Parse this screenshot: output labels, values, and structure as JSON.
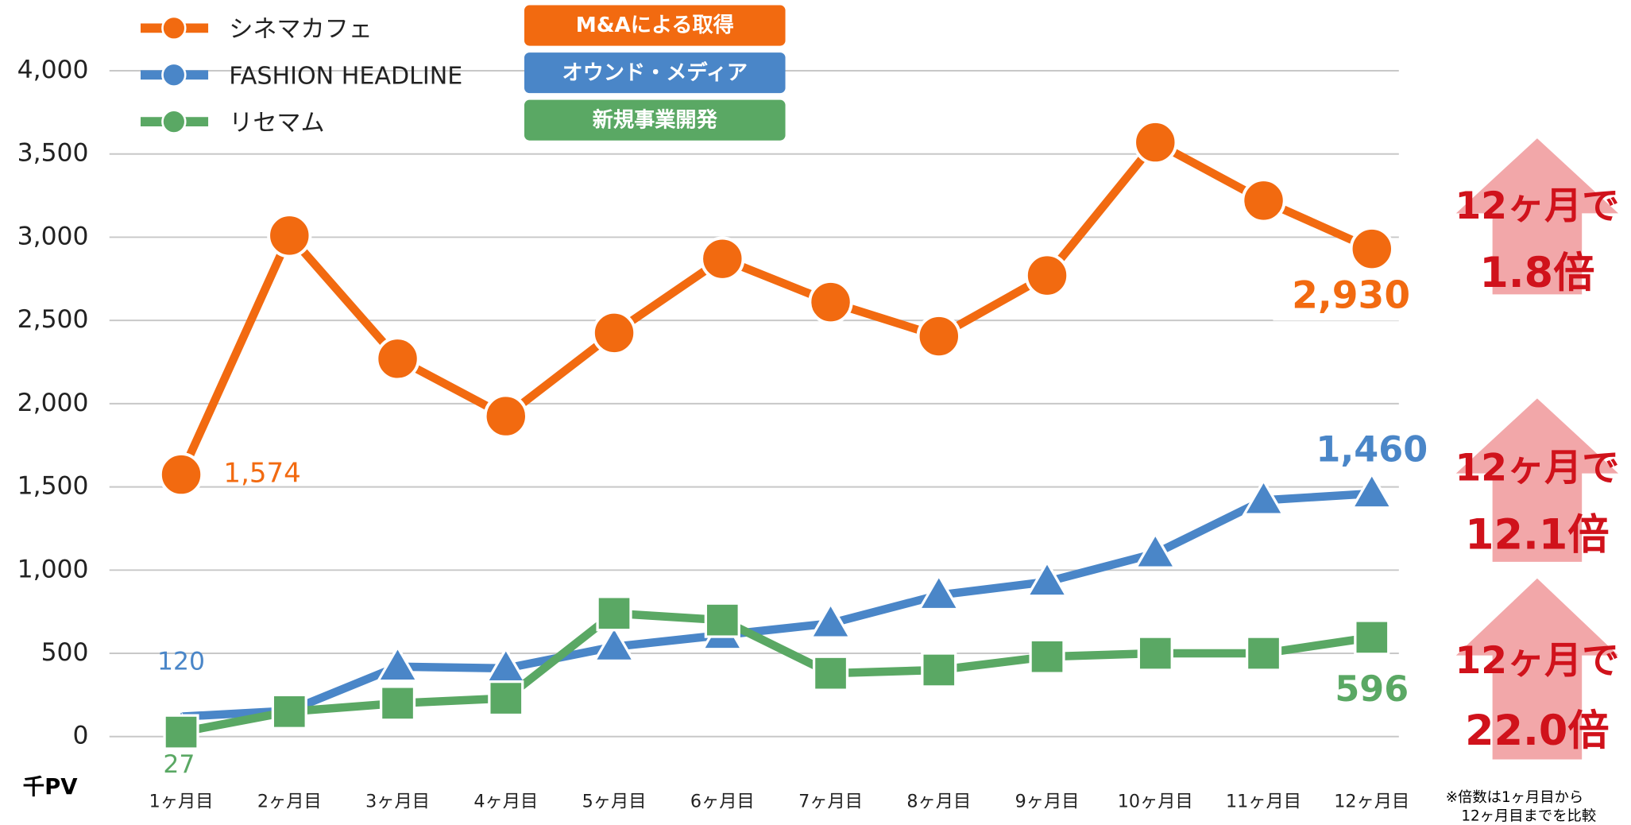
{
  "chart_data": {
    "type": "line",
    "y_label": "千PV",
    "categories": [
      "1ヶ月目",
      "2ヶ月目",
      "3ヶ月目",
      "4ヶ月目",
      "5ヶ月目",
      "6ヶ月目",
      "7ヶ月目",
      "8ヶ月目",
      "9ヶ月目",
      "10ヶ月目",
      "11ヶ月目",
      "12ヶ月目"
    ],
    "ylim": [
      0,
      4000
    ],
    "yticks": [
      0,
      500,
      {
        "value": 1000,
        "label": "1,000"
      },
      {
        "value": 1500,
        "label": "1,500"
      },
      {
        "value": 2000,
        "label": "2,000"
      },
      {
        "value": 2500,
        "label": "2,500"
      },
      {
        "value": 3000,
        "label": "3,000"
      },
      {
        "value": 3500,
        "label": "3,500"
      },
      {
        "value": 4000,
        "label": "4,000"
      }
    ],
    "grid": true,
    "series": [
      {
        "name": "シネマカフェ",
        "color": "#f26a10",
        "marker": "circle",
        "values": [
          1574,
          3010,
          2270,
          1925,
          2425,
          2870,
          2610,
          2405,
          2770,
          3570,
          3220,
          2930
        ],
        "value_labels": [
          "1,574",
          null,
          null,
          null,
          null,
          null,
          null,
          null,
          null,
          null,
          null,
          "2,930"
        ]
      },
      {
        "name": "FASHION HEADLINE",
        "color": "#4a86c8",
        "marker": "triangle",
        "values": [
          120,
          155,
          420,
          410,
          540,
          610,
          680,
          850,
          930,
          1100,
          1420,
          1460
        ],
        "value_labels": [
          "120",
          null,
          null,
          null,
          null,
          null,
          null,
          null,
          null,
          null,
          null,
          "1,460"
        ]
      },
      {
        "name": "リセマム",
        "color": "#5aa864",
        "marker": "square",
        "values": [
          27,
          150,
          200,
          230,
          740,
          700,
          380,
          400,
          480,
          500,
          500,
          596
        ],
        "value_labels": [
          "27",
          null,
          null,
          null,
          null,
          null,
          null,
          null,
          null,
          null,
          null,
          "596"
        ]
      }
    ],
    "tags": [
      "M&Aによる取得",
      "オウンド・メディア",
      "新規事業開発"
    ],
    "annotations": [
      [
        "12ヶ月で",
        "1.8倍"
      ],
      [
        "12ヶ月で",
        "12.1倍"
      ],
      [
        "12ヶ月で",
        "22.0倍"
      ]
    ],
    "footnote": [
      "※倍数は1ヶ月目から",
      "12ヶ月目までを比較"
    ]
  }
}
